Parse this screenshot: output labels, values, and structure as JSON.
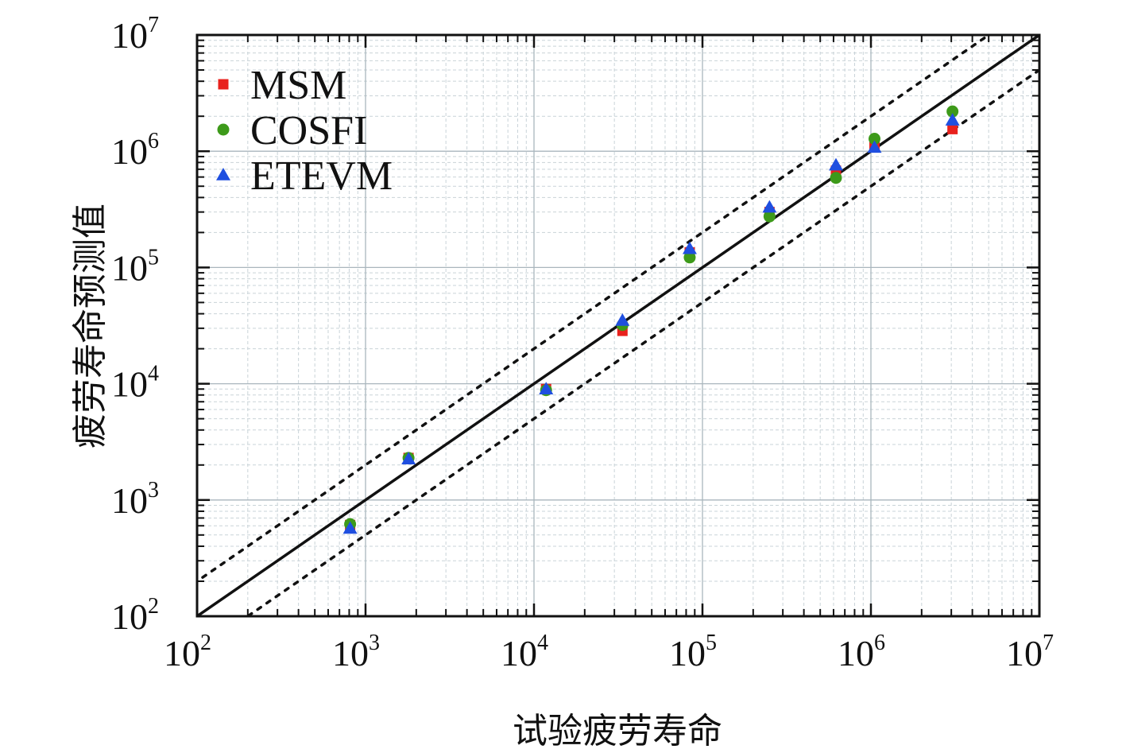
{
  "chart_data": {
    "type": "scatter",
    "xscale": "log",
    "yscale": "log",
    "xlim": [
      100,
      10000000
    ],
    "ylim": [
      100,
      10000000
    ],
    "xlabel": "试验疲劳寿命",
    "ylabel": "疲劳寿命预测值",
    "xtick_values": [
      100,
      1000,
      10000,
      100000,
      1000000,
      10000000
    ],
    "xtick_labels": [
      {
        "base": "10",
        "exp": "2"
      },
      {
        "base": "10",
        "exp": "3"
      },
      {
        "base": "10",
        "exp": "4"
      },
      {
        "base": "10",
        "exp": "5"
      },
      {
        "base": "10",
        "exp": "6"
      },
      {
        "base": "10",
        "exp": "7"
      }
    ],
    "ytick_values": [
      100,
      1000,
      10000,
      100000,
      1000000,
      10000000
    ],
    "ytick_labels": [
      {
        "base": "10",
        "exp": "2"
      },
      {
        "base": "10",
        "exp": "3"
      },
      {
        "base": "10",
        "exp": "4"
      },
      {
        "base": "10",
        "exp": "5"
      },
      {
        "base": "10",
        "exp": "6"
      },
      {
        "base": "10",
        "exp": "7"
      }
    ],
    "grid": true,
    "legend_position": "top-left",
    "reference_lines": [
      {
        "name": "y=x",
        "factor": 1,
        "style": "solid"
      },
      {
        "name": "factor-2-upper",
        "factor": 2,
        "style": "dotted"
      },
      {
        "name": "factor-2-lower",
        "factor": 0.5,
        "style": "dotted"
      }
    ],
    "series": [
      {
        "name": "MSM",
        "marker": "square",
        "color": "#e8211d",
        "x": [
          810,
          1800,
          11800,
          33500,
          84000,
          250000,
          620000,
          1050000,
          3050000
        ],
        "y": [
          610,
          2300,
          9000,
          28500,
          135000,
          300000,
          680000,
          1100000,
          1550000
        ]
      },
      {
        "name": "COSFI",
        "marker": "circle",
        "color": "#3d9a1a",
        "x": [
          810,
          1800,
          11800,
          33500,
          84000,
          250000,
          620000,
          1050000,
          3050000
        ],
        "y": [
          620,
          2300,
          8800,
          32000,
          122000,
          275000,
          590000,
          1280000,
          2200000
        ]
      },
      {
        "name": "ETEVM",
        "marker": "triangle",
        "color": "#1f4fe0",
        "x": [
          810,
          1800,
          11800,
          33500,
          84000,
          250000,
          620000,
          1050000,
          3050000
        ],
        "y": [
          570,
          2250,
          9000,
          35000,
          145000,
          330000,
          760000,
          1080000,
          1850000
        ]
      }
    ]
  }
}
